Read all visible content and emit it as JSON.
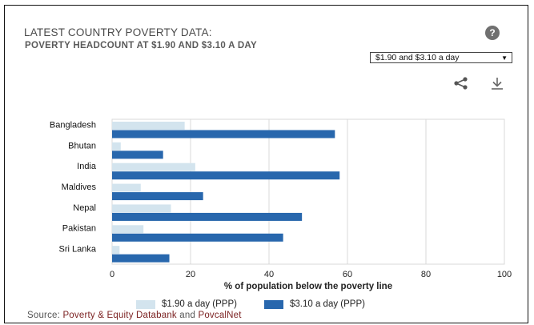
{
  "header": {
    "title": "LATEST COUNTRY POVERTY DATA:",
    "subtitle": "POVERTY HEADCOUNT AT $1.90 AND $3.10 A DAY",
    "help_label": "?"
  },
  "controls": {
    "dropdown_value": "$1.90 and $3.10 a day",
    "icons": [
      "share-icon",
      "download-icon"
    ]
  },
  "colors": {
    "series_190": "#d3e4ee",
    "series_310": "#2867ad",
    "grid": "#d9d9d9",
    "link": "#7a1f1f"
  },
  "chart_data": {
    "type": "bar",
    "orientation": "horizontal",
    "categories": [
      "Bangladesh",
      "Bhutan",
      "India",
      "Maldives",
      "Nepal",
      "Pakistan",
      "Sri Lanka"
    ],
    "series": [
      {
        "name": "$1.90 a day (PPP)",
        "values": [
          18.5,
          2.2,
          21.2,
          7.3,
          15.0,
          8.0,
          1.9
        ]
      },
      {
        "name": "$3.10 a day (PPP)",
        "values": [
          56.8,
          13.0,
          58.0,
          23.2,
          48.4,
          43.6,
          14.6
        ]
      }
    ],
    "xlabel": "% of population below the poverty line",
    "xlim": [
      0,
      100
    ],
    "xticks": [
      0,
      20,
      40,
      60,
      80,
      100
    ],
    "grid": true
  },
  "footer": {
    "source_prefix": "Source: ",
    "source_link1": "Poverty & Equity Databank",
    "source_and": " and ",
    "source_link2": "PovcalNet"
  }
}
